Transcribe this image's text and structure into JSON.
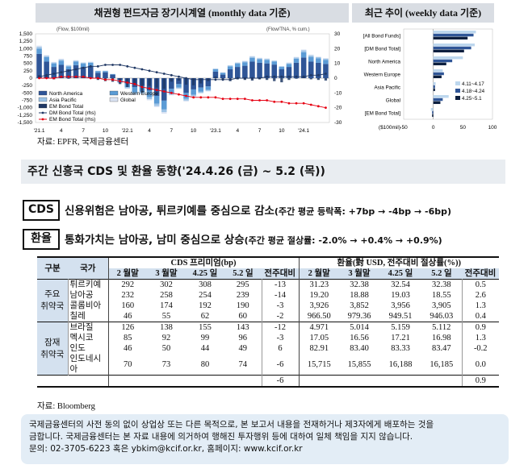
{
  "left_chart": {
    "header": "채권형 펀드자금 장기시계열 (monthly data 기준)",
    "left_unit": "(Flow, $100mil)",
    "right_unit": "(Flow/TNA, % cum.)",
    "left_ticks": [
      "1,500",
      "1,250",
      "1,000",
      "750",
      "500",
      "250",
      "0",
      "-250",
      "-500",
      "-750",
      "-1,000",
      "-1,250",
      "-1,500"
    ],
    "right_ticks": [
      "30",
      "20",
      "10",
      "0",
      "-10",
      "-20",
      "-30"
    ],
    "x_labels": [
      "'21.1",
      "4",
      "7",
      "10",
      "'22.1",
      "4",
      "7",
      "10",
      "'23.1",
      "4",
      "7",
      "10",
      "'24.1"
    ],
    "legend": [
      "North America",
      "Western Europe",
      "Asia Pacific",
      "Global",
      "EM Bond Total",
      "DM Bond Total (rhs)",
      "EM Bond Total (rhs)"
    ],
    "colors": {
      "north_america": "#2f5597",
      "western_europe": "#5b9bd5",
      "asia_pacific": "#9dc3e6",
      "global": "#dae3f3",
      "em_bond": "#1f3864",
      "dm_line": "#203864",
      "em_line": "#e60012"
    }
  },
  "chart_data": [
    {
      "type": "bar",
      "title": "채권형 펀드자금 장기시계열 (monthly data 기준)",
      "ylabel": "(Flow, $100mil)",
      "ylim": [
        -1500,
        1500
      ],
      "y2lim": [
        -30,
        30
      ],
      "categories": [
        "'21.1",
        "2",
        "3",
        "4",
        "5",
        "6",
        "7",
        "8",
        "9",
        "10",
        "11",
        "12",
        "'22.1",
        "2",
        "3",
        "4",
        "5",
        "6",
        "7",
        "8",
        "9",
        "10",
        "11",
        "12",
        "'23.1",
        "2",
        "3",
        "4",
        "5",
        "6",
        "7",
        "8",
        "9",
        "10",
        "11",
        "12",
        "'24.1",
        "2",
        "3",
        "4"
      ],
      "series": [
        {
          "name": "North America",
          "values": [
            820,
            560,
            380,
            450,
            300,
            440,
            380,
            420,
            180,
            200,
            120,
            -60,
            -180,
            -300,
            -260,
            -420,
            -600,
            -760,
            -360,
            -200,
            -500,
            -380,
            -320,
            -280,
            220,
            120,
            300,
            380,
            420,
            560,
            520,
            500,
            460,
            300,
            380,
            520,
            700,
            560,
            520,
            480
          ]
        },
        {
          "name": "Western Europe",
          "values": [
            180,
            150,
            120,
            140,
            100,
            120,
            110,
            100,
            60,
            40,
            20,
            -80,
            -120,
            -180,
            -200,
            -220,
            -260,
            -300,
            -160,
            -120,
            -200,
            -180,
            -140,
            -120,
            80,
            60,
            100,
            110,
            120,
            130,
            120,
            120,
            100,
            80,
            100,
            140,
            180,
            160,
            150,
            140
          ]
        },
        {
          "name": "Asia Pacific",
          "values": [
            60,
            40,
            30,
            40,
            30,
            30,
            30,
            20,
            10,
            10,
            0,
            -20,
            -40,
            -60,
            -60,
            -70,
            -80,
            -90,
            -40,
            -30,
            -60,
            -50,
            -40,
            -30,
            20,
            10,
            30,
            30,
            30,
            40,
            30,
            30,
            30,
            20,
            30,
            40,
            60,
            50,
            40,
            40
          ]
        },
        {
          "name": "Global",
          "values": [
            40,
            30,
            20,
            30,
            20,
            20,
            20,
            20,
            10,
            10,
            0,
            -10,
            -20,
            -30,
            -30,
            -40,
            -40,
            -50,
            -20,
            -20,
            -30,
            -30,
            -20,
            -20,
            10,
            10,
            10,
            20,
            20,
            20,
            20,
            20,
            10,
            10,
            20,
            20,
            30,
            30,
            20,
            20
          ]
        },
        {
          "name": "EM Bond Total",
          "values": [
            100,
            60,
            -40,
            50,
            -20,
            40,
            30,
            10,
            -60,
            -100,
            -120,
            -200,
            -300,
            -220,
            -480,
            -260,
            -320,
            -360,
            -120,
            -80,
            -220,
            -240,
            -180,
            -100,
            60,
            -60,
            -100,
            -40,
            -60,
            -80,
            -40,
            -60,
            -100,
            -140,
            -60,
            -20,
            40,
            -40,
            -60,
            -80
          ]
        },
        {
          "name": "DM Bond Total (rhs)",
          "values": [
            1,
            2,
            3,
            4,
            5,
            6,
            7,
            8,
            8,
            9,
            9,
            9,
            8,
            7,
            6,
            5,
            4,
            3,
            2,
            1,
            0,
            -1,
            -1,
            -1,
            -1,
            -1,
            -1,
            0,
            0,
            0,
            0,
            1,
            1,
            1,
            1,
            1,
            1,
            2,
            2,
            3
          ]
        },
        {
          "name": "EM Bond Total (rhs)",
          "values": [
            0,
            0,
            0,
            1,
            1,
            1,
            1,
            0,
            0,
            -1,
            -1,
            -2,
            -3,
            -4,
            -6,
            -7,
            -8,
            -9,
            -10,
            -11,
            -12,
            -13,
            -13,
            -13,
            -13,
            -14,
            -14,
            -14,
            -14,
            -15,
            -15,
            -15,
            -16,
            -16,
            -17,
            -17,
            -17,
            -18,
            -19,
            -20
          ]
        }
      ]
    },
    {
      "type": "bar",
      "title": "최근 추이 (weekly data 기준)",
      "xlabel": "($100mil)",
      "xlim": [
        -50,
        100
      ],
      "categories": [
        "[All Bond Funds]",
        "[DM Bond Total]",
        "North America",
        "Western Europe",
        "Asia Pacific",
        "Global",
        "[EM Bond Total]"
      ],
      "series": [
        {
          "name": "4.11~4.17",
          "values": [
            72,
            70,
            50,
            16,
            4,
            26,
            -4
          ]
        },
        {
          "name": "4.18~4.24",
          "values": [
            68,
            64,
            32,
            18,
            3,
            16,
            -2
          ]
        },
        {
          "name": "4.25~5.1",
          "values": [
            58,
            52,
            22,
            14,
            3,
            12,
            -2
          ]
        }
      ]
    }
  ],
  "right_chart": {
    "header": "최근 추이 (weekly data 기준)",
    "x_ticks": [
      "-50",
      "0",
      "50",
      "100"
    ],
    "legend": [
      "4.11~4.17",
      "4.18~4.24",
      "4.25~5.1"
    ],
    "colors": [
      "#bdd7ee",
      "#2f5597",
      "#0d1f3f"
    ]
  },
  "source1": "자료: EPFR,  국제금융센터",
  "section_title": "주간 신흥국 CDS 및 환율 동향('24.4.26 (금) ~ 5.2 (목))",
  "cds": {
    "tag": "CDS",
    "main": "신용위험은 남아공, 튀르키예를 중심으로 감소",
    "sub": "(주간 평균 등락폭: +7bp → -4bp → -6bp)"
  },
  "fx": {
    "tag": "환율",
    "main": "통화가치는 남아공, 남미 중심으로 상승",
    "sub": "(주간 평균 절상률:  -2.0% → +0.4% → +0.9%)"
  },
  "table": {
    "h_group": "구분",
    "h_country": "국가",
    "h_cds": "CDS 프리미엄(bp)",
    "h_fx": "환율(對 USD, 전주대비 절상률(%))",
    "sub_headers": [
      "2 월말",
      "3 월말",
      "4.25 일",
      "5.2 일",
      "전주대비",
      "2 월말",
      "3 월말",
      "4.25 일",
      "5.2 일",
      "전주대비"
    ],
    "group1_line1": "주요",
    "group1_line2": "취약국",
    "group2_line1": "잠재",
    "group2_line2": "취약국",
    "rows": [
      {
        "country": "튀르키예",
        "v": [
          "292",
          "302",
          "308",
          "295",
          "-13",
          "31.23",
          "32.38",
          "32.54",
          "32.38",
          "0.5"
        ]
      },
      {
        "country": "남아공",
        "v": [
          "232",
          "258",
          "254",
          "239",
          "-14",
          "19.20",
          "18.88",
          "19.03",
          "18.55",
          "2.6"
        ]
      },
      {
        "country": "콜롬비아",
        "v": [
          "160",
          "174",
          "192",
          "190",
          "-3",
          "3,926",
          "3,852",
          "3,956",
          "3,905",
          "1.3"
        ]
      },
      {
        "country": "칠레",
        "v": [
          "46",
          "55",
          "62",
          "60",
          "-2",
          "966.50",
          "979.36",
          "949.51",
          "946.03",
          "0.4"
        ]
      },
      {
        "country": "브라질",
        "v": [
          "126",
          "138",
          "155",
          "143",
          "-12",
          "4.971",
          "5.014",
          "5.159",
          "5.112",
          "0.9"
        ]
      },
      {
        "country": "멕시코",
        "v": [
          "85",
          "92",
          "99",
          "96",
          "-3",
          "17.05",
          "16.56",
          "17.21",
          "16.98",
          "1.3"
        ]
      },
      {
        "country": "인도",
        "v": [
          "46",
          "50",
          "44",
          "49",
          "6",
          "82.91",
          "83.40",
          "83.33",
          "83.47",
          "-0.2"
        ]
      },
      {
        "country": "인도네시아",
        "v": [
          "70",
          "73",
          "80",
          "74",
          "-6",
          "15,715",
          "15,855",
          "16,188",
          "16,185",
          "0.0"
        ]
      }
    ],
    "avg_cds": "-6",
    "avg_fx": "0.9"
  },
  "source2": "자료: Bloomberg",
  "disclaimer": {
    "line1": "국제금융센터의 사전 동의 없이 상업상 또는 다른 목적으로, 본 보고서 내용을 전재하거나 제3자에게 배포하는 것을",
    "line2": "금합니다. 국제금융센터는 본 자료 내용에 의거하여 행해진 투자행위 등에 대하여 일체 책임을 지지 않습니다.",
    "line3": "문의: 02-3705-6223 혹은 ybkim@kcif.or.kr, 홈페이지: www.kcif.or.kr"
  }
}
